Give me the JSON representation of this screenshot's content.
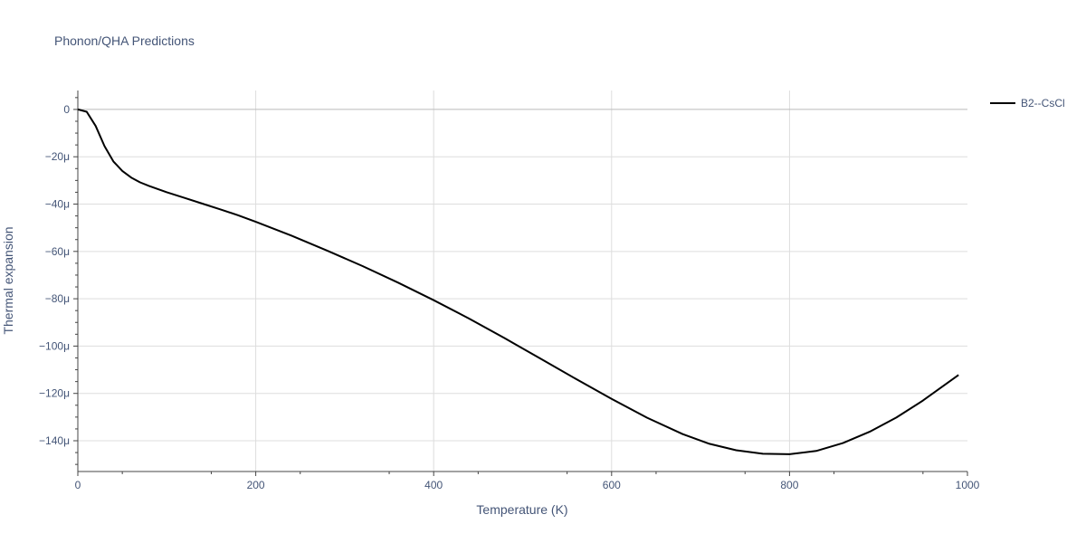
{
  "chart_data": {
    "type": "line",
    "title": "Phonon/QHA Predictions",
    "xlabel": "Temperature (K)",
    "ylabel": "Thermal expansion",
    "xlim": [
      0,
      1000
    ],
    "ylim": [
      -153,
      8
    ],
    "x_ticks": [
      0,
      200,
      400,
      600,
      800,
      1000
    ],
    "x_tick_labels": [
      "0",
      "200",
      "400",
      "600",
      "800",
      "1000"
    ],
    "y_ticks": [
      0,
      -20,
      -40,
      -60,
      -80,
      -100,
      -120,
      -140
    ],
    "y_tick_labels": [
      "0",
      "−20μ",
      "−40μ",
      "−60μ",
      "−80μ",
      "−100μ",
      "−120μ",
      "−140μ"
    ],
    "grid": true,
    "legend_position": "top-right",
    "series": [
      {
        "name": "B2--CsCl",
        "color": "#000000",
        "x": [
          0,
          10,
          20,
          30,
          40,
          50,
          60,
          70,
          80,
          100,
          120,
          140,
          160,
          180,
          200,
          240,
          280,
          320,
          360,
          400,
          440,
          480,
          520,
          560,
          600,
          640,
          680,
          710,
          740,
          770,
          800,
          830,
          860,
          890,
          920,
          950,
          990
        ],
        "y": [
          0,
          -1,
          -7,
          -15.5,
          -22,
          -26,
          -28.8,
          -30.8,
          -32.3,
          -35,
          -37.4,
          -39.8,
          -42.2,
          -44.7,
          -47.5,
          -53.3,
          -59.6,
          -66.2,
          -73.2,
          -80.6,
          -88.4,
          -96.7,
          -105.3,
          -113.9,
          -122.3,
          -130.3,
          -137.2,
          -141.3,
          -144,
          -145.5,
          -145.7,
          -144.3,
          -141,
          -136.2,
          -130.2,
          -123,
          -112.2
        ]
      }
    ]
  }
}
